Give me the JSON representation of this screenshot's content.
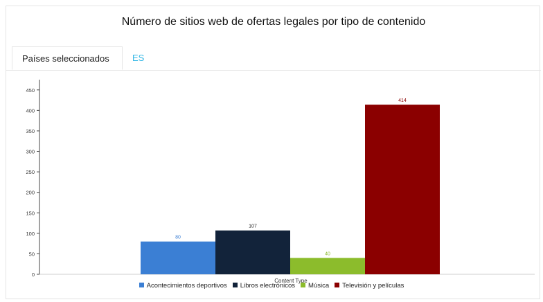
{
  "header": {
    "title": "Número de sitios web de ofertas legales por tipo de contenido"
  },
  "tabs": [
    {
      "label": "Países seleccionados",
      "active": true
    },
    {
      "label": "ES",
      "active": false,
      "color": "#35b8e6"
    }
  ],
  "chart_data": {
    "type": "bar",
    "title": "Número de sitios web de ofertas legales por tipo de contenido",
    "xlabel": "Content Type",
    "ylabel": "",
    "ylim": [
      0,
      475
    ],
    "yticks": [
      0,
      50,
      100,
      150,
      200,
      250,
      300,
      350,
      400,
      450
    ],
    "grid": false,
    "legend_position": "bottom",
    "series": [
      {
        "name": "Acontecimientos deportivos",
        "values": [
          80
        ],
        "color": "#3b7fd4",
        "label_color": "#3b7fd4"
      },
      {
        "name": "Libros electrónicos",
        "values": [
          107
        ],
        "color": "#12233a",
        "label_color": "#222222"
      },
      {
        "name": "Música",
        "values": [
          40
        ],
        "color": "#8cbc2c",
        "label_color": "#8cbc2c"
      },
      {
        "name": "Televisión y películas",
        "values": [
          414
        ],
        "color": "#8b0000",
        "label_color": "#8b0000"
      }
    ]
  }
}
